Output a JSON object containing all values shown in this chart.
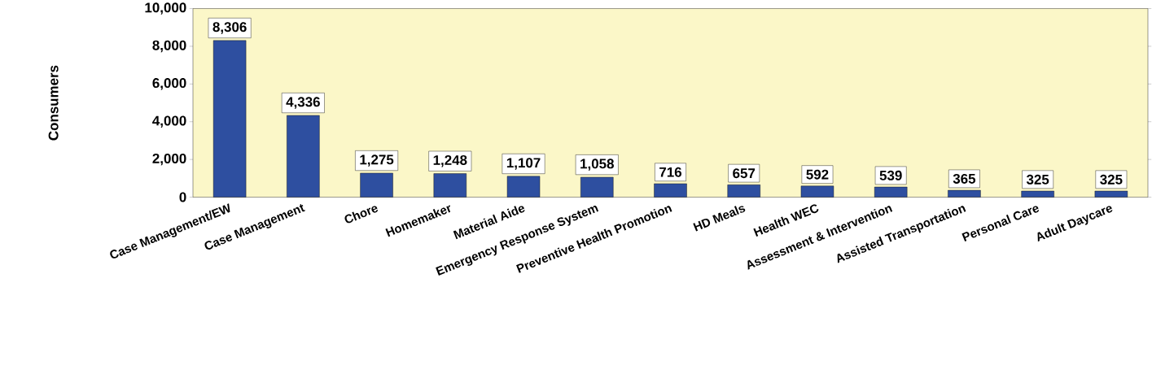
{
  "chart_data": {
    "type": "bar",
    "ylabel": "Consumers",
    "categories": [
      "Case Management/EW",
      "Case Management",
      "Chore",
      "Homemaker",
      "Material Aide",
      "Emergency Response System",
      "Preventive Health Promotion",
      "HD Meals",
      "Health WEC",
      "Assessment & Intervention",
      "Assisted Transportation",
      "Personal Care",
      "Adult Daycare"
    ],
    "values": [
      8306,
      4336,
      1275,
      1248,
      1107,
      1058,
      716,
      657,
      592,
      539,
      365,
      325,
      325
    ],
    "color": "#2e4fa0",
    "ylim": [
      0,
      10000
    ],
    "yticks": [
      {
        "value": 0,
        "label": "0"
      },
      {
        "value": 2000,
        "label": "2,000"
      },
      {
        "value": 4000,
        "label": "4,000"
      },
      {
        "value": 6000,
        "label": "6,000"
      },
      {
        "value": 8000,
        "label": "8,000"
      },
      {
        "value": 10000,
        "label": "10,000"
      }
    ],
    "value_labels": [
      "8,306",
      "4,336",
      "1,275",
      "1,248",
      "1,107",
      "1,058",
      "716",
      "657",
      "592",
      "539",
      "365",
      "325",
      "325"
    ]
  }
}
